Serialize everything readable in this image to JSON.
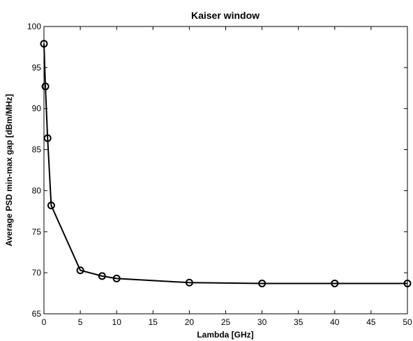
{
  "chart_data": {
    "type": "line",
    "title": "Kaiser window",
    "xlabel": "Lambda  [GHz]",
    "ylabel": "Average PSD min-max gap  [dBm/MHz]",
    "xlim": [
      0,
      50
    ],
    "ylim": [
      65,
      100
    ],
    "xticks": [
      0,
      5,
      10,
      15,
      20,
      25,
      30,
      35,
      40,
      45,
      50
    ],
    "yticks": [
      65,
      70,
      75,
      80,
      85,
      90,
      95,
      100
    ],
    "grid": false,
    "marker": "circle",
    "line_color": "#000000",
    "series": [
      {
        "x": [
          0,
          0.2,
          0.5,
          1,
          5,
          8,
          10,
          20,
          30,
          40,
          50
        ],
        "y": [
          97.9,
          92.7,
          86.4,
          78.2,
          70.3,
          69.6,
          69.3,
          68.8,
          68.7,
          68.7,
          68.7
        ]
      }
    ]
  }
}
